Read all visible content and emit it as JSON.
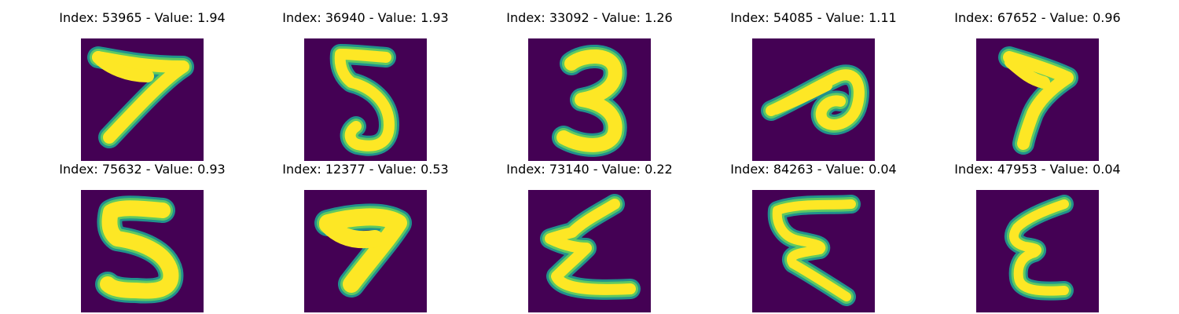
{
  "colors": {
    "background": "#440154",
    "stroke_core": "#fde725",
    "stroke_mid": "#5ec962",
    "stroke_edge": "#21918c"
  },
  "items": [
    {
      "title": "Index: 53965 - Value: 1.94",
      "digit_depicted": "7"
    },
    {
      "title": "Index: 36940 - Value: 1.93",
      "digit_depicted": "5"
    },
    {
      "title": "Index: 33092 - Value: 1.26",
      "digit_depicted": "3"
    },
    {
      "title": "Index: 54085 - Value: 1.11",
      "digit_depicted": "6"
    },
    {
      "title": "Index: 67652 - Value: 0.96",
      "digit_depicted": "7"
    },
    {
      "title": "Index: 75632 - Value: 0.93",
      "digit_depicted": "5"
    },
    {
      "title": "Index: 12377 - Value: 0.53",
      "digit_depicted": "7"
    },
    {
      "title": "Index: 73140 - Value: 0.22",
      "digit_depicted": "E"
    },
    {
      "title": "Index: 84263 - Value: 0.04",
      "digit_depicted": "E"
    },
    {
      "title": "Index: 47953 - Value: 0.04",
      "digit_depicted": "E"
    }
  ]
}
